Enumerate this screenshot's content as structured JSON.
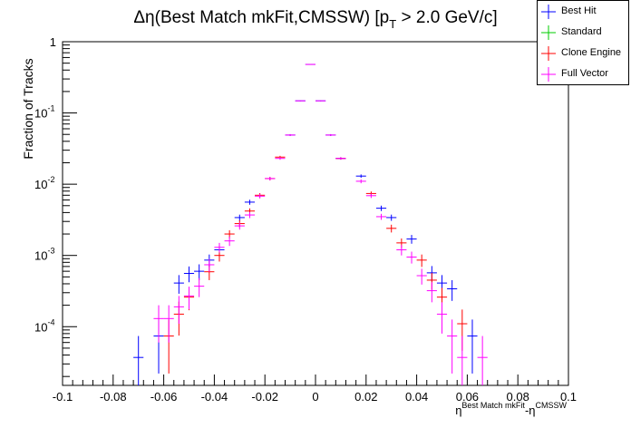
{
  "chart_data": {
    "type": "scatter",
    "title": "Δη(Best Match mkFit,CMSSW) [p_T > 2.0 GeV/c]",
    "title_parts": {
      "pre": "Δη(Best Match mkFit,CMSSW) [p",
      "sub": "T",
      "post": " > 2.0 GeV/c]"
    },
    "xlabel": "η^{Best Match mkFit}-η^{CMSSW}",
    "xlabel_parts": {
      "base1": "η",
      "sup1": "Best Match mkFit",
      "mid": "-η",
      "sup2": "CMSSW"
    },
    "ylabel": "Fraction of Tracks",
    "xlim": [
      -0.1,
      0.1
    ],
    "ylim": [
      1.5e-05,
      1
    ],
    "yscale": "log",
    "bin_width": 0.004,
    "x_ticks": [
      "-0.1",
      "-0.08",
      "-0.06",
      "-0.04",
      "-0.02",
      "0",
      "0.02",
      "0.04",
      "0.06",
      "0.08",
      "0.1"
    ],
    "y_ticks": [
      {
        "base": "1",
        "exp": ""
      },
      {
        "base": "10",
        "exp": "-1"
      },
      {
        "base": "10",
        "exp": "-2"
      },
      {
        "base": "10",
        "exp": "-3"
      },
      {
        "base": "10",
        "exp": "-4"
      }
    ],
    "legend_position": "top-right",
    "series": [
      {
        "name": "Best Hit",
        "color": "#0000ff",
        "points": [
          {
            "x": -0.07,
            "y": 3.7e-05,
            "err": 3.7e-05
          },
          {
            "x": -0.062,
            "y": 7.4e-05,
            "err": 5.2e-05
          },
          {
            "x": -0.054,
            "y": 0.00041,
            "err": 0.00012
          },
          {
            "x": -0.05,
            "y": 0.00056,
            "err": 0.00014
          },
          {
            "x": -0.046,
            "y": 0.0006,
            "err": 0.00015
          },
          {
            "x": -0.042,
            "y": 0.00086,
            "err": 0.00017
          },
          {
            "x": -0.038,
            "y": 0.0012,
            "err": 0.0002
          },
          {
            "x": -0.03,
            "y": 0.0034,
            "err": 0.00034
          },
          {
            "x": -0.026,
            "y": 0.0056,
            "err": 0.00045
          },
          {
            "x": -0.01,
            "y": 0.049,
            "err": 0.0014
          },
          {
            "x": -0.006,
            "y": 0.148,
            "err": 0.002
          },
          {
            "x": -0.002,
            "y": 0.48,
            "err": 0.004
          },
          {
            "x": 0.002,
            "y": 0.148,
            "err": 0.002
          },
          {
            "x": 0.006,
            "y": 0.049,
            "err": 0.0014
          },
          {
            "x": 0.01,
            "y": 0.023,
            "err": 0.0009
          },
          {
            "x": 0.018,
            "y": 0.013,
            "err": 0.0007
          },
          {
            "x": 0.026,
            "y": 0.0046,
            "err": 0.0004
          },
          {
            "x": 0.03,
            "y": 0.0034,
            "err": 0.00034
          },
          {
            "x": 0.038,
            "y": 0.0017,
            "err": 0.00024
          },
          {
            "x": 0.046,
            "y": 0.00057,
            "err": 0.00014
          },
          {
            "x": 0.05,
            "y": 0.00041,
            "err": 0.00012
          },
          {
            "x": 0.054,
            "y": 0.00034,
            "err": 0.00011
          },
          {
            "x": 0.062,
            "y": 7.4e-05,
            "err": 5.2e-05
          }
        ]
      },
      {
        "name": "Standard",
        "color": "#00cc00",
        "points": []
      },
      {
        "name": "Clone Engine",
        "color": "#ff0000",
        "points": [
          {
            "x": -0.058,
            "y": 7.4e-05,
            "err": 5.2e-05
          },
          {
            "x": -0.054,
            "y": 0.00015,
            "err": 7.5e-05
          },
          {
            "x": -0.05,
            "y": 0.00026,
            "err": 9e-05
          },
          {
            "x": -0.042,
            "y": 0.00059,
            "err": 0.00014
          },
          {
            "x": -0.038,
            "y": 0.001,
            "err": 0.00018
          },
          {
            "x": -0.034,
            "y": 0.002,
            "err": 0.00026
          },
          {
            "x": -0.03,
            "y": 0.0028,
            "err": 0.00031
          },
          {
            "x": -0.026,
            "y": 0.0042,
            "err": 0.00038
          },
          {
            "x": -0.022,
            "y": 0.007,
            "err": 0.0005
          },
          {
            "x": -0.018,
            "y": 0.012,
            "err": 0.0007
          },
          {
            "x": -0.014,
            "y": 0.024,
            "err": 0.001
          },
          {
            "x": 0.01,
            "y": 0.023,
            "err": 0.0009
          },
          {
            "x": 0.022,
            "y": 0.0074,
            "err": 0.0005
          },
          {
            "x": 0.03,
            "y": 0.0024,
            "err": 0.0003
          },
          {
            "x": 0.034,
            "y": 0.0015,
            "err": 0.00023
          },
          {
            "x": 0.042,
            "y": 0.00086,
            "err": 0.00017
          },
          {
            "x": 0.046,
            "y": 0.00045,
            "err": 0.00012
          },
          {
            "x": 0.05,
            "y": 0.00026,
            "err": 9e-05
          },
          {
            "x": 0.058,
            "y": 0.00011,
            "err": 6.4e-05
          }
        ]
      },
      {
        "name": "Full Vector",
        "color": "#ff00ff",
        "points": [
          {
            "x": -0.062,
            "y": 0.00013,
            "err": 7e-05
          },
          {
            "x": -0.058,
            "y": 0.00013,
            "err": 7e-05
          },
          {
            "x": -0.054,
            "y": 0.00019,
            "err": 8e-05
          },
          {
            "x": -0.05,
            "y": 0.00027,
            "err": 9.5e-05
          },
          {
            "x": -0.046,
            "y": 0.00037,
            "err": 0.00011
          },
          {
            "x": -0.042,
            "y": 0.00074,
            "err": 0.00015
          },
          {
            "x": -0.038,
            "y": 0.0013,
            "err": 0.0002
          },
          {
            "x": -0.034,
            "y": 0.0016,
            "err": 0.00024
          },
          {
            "x": -0.03,
            "y": 0.0026,
            "err": 0.0003
          },
          {
            "x": -0.026,
            "y": 0.0037,
            "err": 0.00036
          },
          {
            "x": -0.022,
            "y": 0.0068,
            "err": 0.0005
          },
          {
            "x": -0.018,
            "y": 0.012,
            "err": 0.0007
          },
          {
            "x": -0.014,
            "y": 0.023,
            "err": 0.001
          },
          {
            "x": -0.01,
            "y": 0.049,
            "err": 0.0014
          },
          {
            "x": -0.006,
            "y": 0.148,
            "err": 0.002
          },
          {
            "x": -0.002,
            "y": 0.48,
            "err": 0.004
          },
          {
            "x": 0.002,
            "y": 0.148,
            "err": 0.002
          },
          {
            "x": 0.006,
            "y": 0.049,
            "err": 0.0014
          },
          {
            "x": 0.01,
            "y": 0.023,
            "err": 0.0009
          },
          {
            "x": 0.018,
            "y": 0.011,
            "err": 0.0007
          },
          {
            "x": 0.022,
            "y": 0.0069,
            "err": 0.0005
          },
          {
            "x": 0.026,
            "y": 0.0035,
            "err": 0.00034
          },
          {
            "x": 0.034,
            "y": 0.0012,
            "err": 0.0002
          },
          {
            "x": 0.038,
            "y": 0.00095,
            "err": 0.00018
          },
          {
            "x": 0.042,
            "y": 0.00052,
            "err": 0.00013
          },
          {
            "x": 0.046,
            "y": 0.00032,
            "err": 0.0001
          },
          {
            "x": 0.05,
            "y": 0.00015,
            "err": 7e-05
          },
          {
            "x": 0.054,
            "y": 7.4e-05,
            "err": 5.2e-05
          },
          {
            "x": 0.058,
            "y": 3.7e-05,
            "err": 3.7e-05
          },
          {
            "x": 0.066,
            "y": 3.7e-05,
            "err": 3.7e-05
          }
        ]
      }
    ]
  }
}
